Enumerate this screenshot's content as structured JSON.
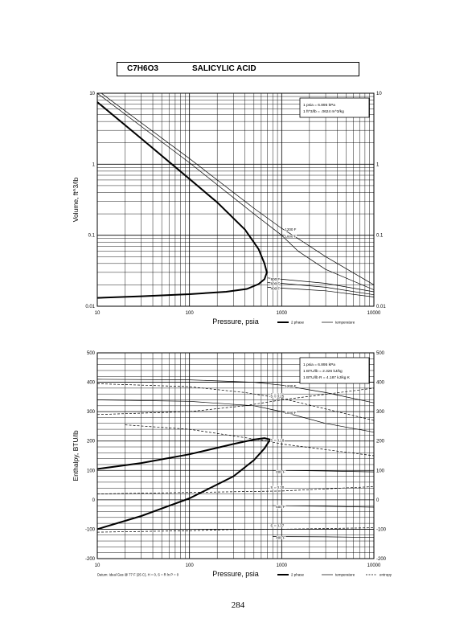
{
  "header": {
    "formula": "C7H6O3",
    "compound_name": "SALICYLIC ACID"
  },
  "page_number": "284",
  "chart_data": [
    {
      "type": "line",
      "x_scale": "log",
      "y_scale": "log",
      "xlim": [
        10,
        10000
      ],
      "ylim": [
        0.01,
        10
      ],
      "xlabel": "Pressure,  psia",
      "ylabel": "Volume, ft^3/lb",
      "x_ticks": [
        "10",
        "100",
        "1000",
        "10000"
      ],
      "y_ticks": [
        "10",
        "1",
        "0.1",
        "0.01"
      ],
      "grid": true,
      "conversion_box": [
        "1 psia  =  6.895 kPa",
        "1 ft^3/lb  =  .0624 m^3/kg"
      ],
      "legend": [
        "2 phase",
        "temperature"
      ],
      "series": [
        {
          "name": "2 phase",
          "style": "bold",
          "x": [
            10,
            30,
            100,
            200,
            400,
            560,
            650,
            690,
            650,
            560,
            420,
            250,
            100,
            30,
            10
          ],
          "y": [
            7.5,
            2.3,
            0.62,
            0.29,
            0.12,
            0.064,
            0.04,
            0.03,
            0.024,
            0.0205,
            0.0175,
            0.016,
            0.0148,
            0.0138,
            0.0131
          ]
        },
        {
          "label": "1200 F",
          "style": "thin",
          "x": [
            10,
            100,
            500,
            1000,
            1500,
            3000,
            10000
          ],
          "y": [
            11,
            1.2,
            0.24,
            0.125,
            0.09,
            0.05,
            0.02
          ]
        },
        {
          "label": "1000 F",
          "style": "thin",
          "x": [
            10,
            100,
            500,
            1000,
            1500,
            3000,
            10000
          ],
          "y": [
            10,
            1.05,
            0.2,
            0.1,
            0.06,
            0.033,
            0.017
          ]
        },
        {
          "label": "800 F",
          "style": "thin",
          "x": [
            700,
            1000,
            3000,
            10000
          ],
          "y": [
            0.025,
            0.024,
            0.021,
            0.016
          ]
        },
        {
          "label": "600 F",
          "style": "thin",
          "x": [
            700,
            1000,
            3000,
            10000
          ],
          "y": [
            0.0215,
            0.021,
            0.0185,
            0.0145
          ]
        },
        {
          "label": "400 F",
          "style": "thin",
          "x": [
            700,
            1000,
            3000,
            10000
          ],
          "y": [
            0.0185,
            0.018,
            0.0165,
            0.0135
          ]
        }
      ]
    },
    {
      "type": "line",
      "x_scale": "log",
      "xlim": [
        10,
        10000
      ],
      "ylim": [
        -200,
        500
      ],
      "xlabel": "Pressure,  psia",
      "ylabel": "Enthalpy, BTU/lb",
      "x_ticks": [
        "10",
        "100",
        "1000",
        "10000"
      ],
      "y_ticks": [
        "500",
        "400",
        "300",
        "200",
        "100",
        "0",
        "-100",
        "-200"
      ],
      "grid": true,
      "conversion_box": [
        "1 psia  =  6.895 kPa",
        "1 BTU/lb  =  2.326 kJ/kg",
        "1 BTU/lb R  =  4.187 kJ/kg K"
      ],
      "footnote": "Datum: Ideal Gas @ 77 F (25 C),  H = 0,  S = R ln P = 0",
      "legend": [
        "2 phase",
        "temperature",
        "entropy"
      ],
      "series": [
        {
          "name": "2 phase",
          "style": "bold",
          "x": [
            10,
            30,
            100,
            300,
            500,
            650,
            750,
            650,
            500,
            300,
            100,
            30,
            10
          ],
          "y": [
            105,
            125,
            155,
            190,
            205,
            210,
            205,
            175,
            135,
            80,
            5,
            -55,
            -100
          ]
        },
        {
          "label": "1200 F",
          "style": "thin",
          "x": [
            10,
            100,
            500,
            1000,
            3000,
            10000
          ],
          "y": [
            410,
            408,
            400,
            390,
            365,
            330
          ]
        },
        {
          "label": "1000 F",
          "style": "thin",
          "x": [
            10,
            100,
            500,
            1000,
            3000,
            10000
          ],
          "y": [
            340,
            335,
            320,
            300,
            260,
            230
          ]
        },
        {
          "label": "800 F",
          "style": "thin",
          "x": [
            800,
            1000,
            3000,
            10000
          ],
          "y": [
            100,
            100,
            98,
            95
          ]
        },
        {
          "label": "600 F",
          "style": "thin",
          "x": [
            800,
            1000,
            3000,
            10000
          ],
          "y": [
            -20,
            -20,
            -22,
            -25
          ]
        },
        {
          "label": "400 F",
          "style": "thin",
          "x": [
            800,
            1000,
            3000,
            10000
          ],
          "y": [
            -125,
            -125,
            -126,
            -128
          ]
        },
        {
          "label": "S = 0.21",
          "style": "dashed",
          "x": [
            10,
            100,
            400,
            1000,
            10000
          ],
          "y": [
            395,
            385,
            365,
            345,
            270
          ]
        },
        {
          "label": "S = 0.25",
          "style": "dashed",
          "x": [
            10,
            100,
            400,
            1000,
            10000
          ],
          "y": [
            290,
            300,
            320,
            340,
            380
          ]
        },
        {
          "label": "S = 0.18",
          "style": "dashed",
          "x": [
            20,
            100,
            700,
            1000,
            10000
          ],
          "y": [
            255,
            240,
            200,
            190,
            150
          ]
        },
        {
          "label": "S = 0.30",
          "style": "dashed",
          "x": [
            10,
            100,
            400,
            1000,
            10000
          ],
          "y": [
            20,
            25,
            28,
            30,
            45
          ]
        },
        {
          "label": "S = 0.37",
          "style": "dashed",
          "x": [
            10,
            100,
            400,
            1000,
            10000
          ],
          "y": [
            -110,
            -105,
            -100,
            -100,
            -95
          ]
        }
      ],
      "point_labels": [
        "S = 0.21",
        "S = 0.25",
        "S = 0.18",
        "S = 0.30",
        "S = 0.37"
      ]
    }
  ]
}
